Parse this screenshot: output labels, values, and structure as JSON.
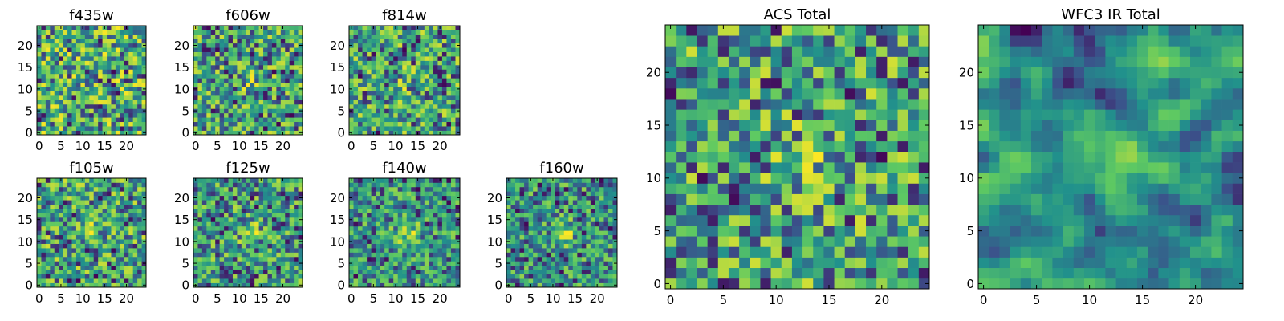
{
  "chart_data": {
    "type": "heatmap",
    "colormap": "viridis",
    "colormap_stops": [
      "#440154",
      "#3b528b",
      "#21918c",
      "#5ec962",
      "#fde725"
    ],
    "grid_size": 25,
    "xlim": [
      0,
      24
    ],
    "ylim": [
      0,
      24
    ],
    "origin": "lower",
    "panels": [
      {
        "title": "f435w",
        "x_ticks": [
          "0",
          "5",
          "10",
          "15",
          "20"
        ],
        "y_ticks": [
          "0",
          "5",
          "10",
          "15",
          "20"
        ],
        "source": "none"
      },
      {
        "title": "f606w",
        "x_ticks": [
          "0",
          "5",
          "10",
          "15",
          "20"
        ],
        "y_ticks": [
          "0",
          "5",
          "10",
          "15",
          "20"
        ],
        "source": "faint"
      },
      {
        "title": "f814w",
        "x_ticks": [
          "0",
          "5",
          "10",
          "15",
          "20"
        ],
        "y_ticks": [
          "0",
          "5",
          "10",
          "15",
          "20"
        ],
        "source": "faint"
      },
      {
        "title": "f105w",
        "x_ticks": [
          "0",
          "5",
          "10",
          "15",
          "20"
        ],
        "y_ticks": [
          "0",
          "5",
          "10",
          "15",
          "20"
        ],
        "source": "faint"
      },
      {
        "title": "f125w",
        "x_ticks": [
          "0",
          "5",
          "10",
          "15",
          "20"
        ],
        "y_ticks": [
          "0",
          "5",
          "10",
          "15",
          "20"
        ],
        "source": "moderate"
      },
      {
        "title": "f140w",
        "x_ticks": [
          "0",
          "5",
          "10",
          "15",
          "20"
        ],
        "y_ticks": [
          "0",
          "5",
          "10",
          "15",
          "20"
        ],
        "source": "bright"
      },
      {
        "title": "f160w",
        "x_ticks": [
          "0",
          "5",
          "10",
          "15",
          "20"
        ],
        "y_ticks": [
          "0",
          "5",
          "10",
          "15",
          "20"
        ],
        "source": "bright"
      },
      {
        "title": "ACS Total",
        "x_ticks": [
          "0",
          "5",
          "10",
          "15",
          "20"
        ],
        "y_ticks": [
          "0",
          "5",
          "10",
          "15",
          "20"
        ],
        "source": "faint"
      },
      {
        "title": "WFC3 IR Total",
        "x_ticks": [
          "0",
          "5",
          "10",
          "15",
          "20"
        ],
        "y_ticks": [
          "0",
          "5",
          "10",
          "15",
          "20"
        ],
        "source": "bright"
      }
    ],
    "source_center": [
      12.5,
      12
    ],
    "grid": false,
    "legend": "none"
  }
}
